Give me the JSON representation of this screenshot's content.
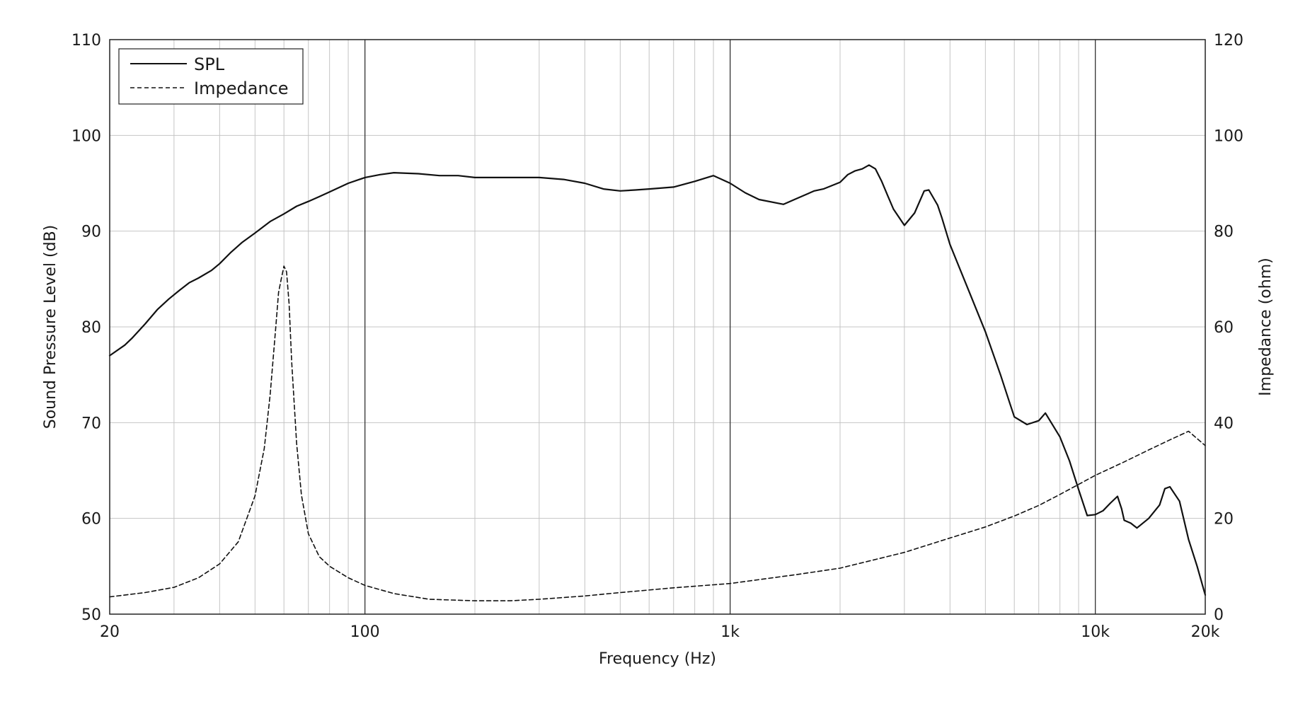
{
  "chart_data": {
    "type": "line",
    "xlabel": "Frequency (Hz)",
    "ylabel": "Sound Pressure Level (dB)",
    "y2label": "Impedance (ohm)",
    "xscale": "log",
    "xlim": [
      20,
      20000
    ],
    "ylim": [
      50,
      110
    ],
    "y2lim": [
      0,
      120
    ],
    "grid": true,
    "legend_position": "top-left",
    "x_ticks": [
      {
        "value": 20,
        "label": "20"
      },
      {
        "value": 100,
        "label": "100"
      },
      {
        "value": 1000,
        "label": "1k"
      },
      {
        "value": 10000,
        "label": "10k"
      },
      {
        "value": 20000,
        "label": "20k"
      }
    ],
    "y_ticks": [
      {
        "value": 50,
        "label": "50"
      },
      {
        "value": 60,
        "label": "60"
      },
      {
        "value": 70,
        "label": "70"
      },
      {
        "value": 80,
        "label": "80"
      },
      {
        "value": 90,
        "label": "90"
      },
      {
        "value": 100,
        "label": "100"
      },
      {
        "value": 110,
        "label": "110"
      }
    ],
    "y2_ticks": [
      {
        "value": 0,
        "label": "0"
      },
      {
        "value": 20,
        "label": "20"
      },
      {
        "value": 40,
        "label": "40"
      },
      {
        "value": 60,
        "label": "60"
      },
      {
        "value": 80,
        "label": "80"
      },
      {
        "value": 100,
        "label": "100"
      },
      {
        "value": 120,
        "label": "120"
      }
    ],
    "series": [
      {
        "name": "SPL",
        "axis": "left",
        "style": "solid",
        "color": "#111111",
        "x": [
          20,
          22,
          23,
          25,
          27,
          29,
          31,
          33,
          35,
          38,
          40,
          43,
          46,
          50,
          55,
          60,
          65,
          70,
          75,
          80,
          90,
          100,
          110,
          120,
          140,
          160,
          180,
          200,
          250,
          300,
          350,
          400,
          450,
          500,
          550,
          600,
          700,
          800,
          900,
          1000,
          1100,
          1200,
          1400,
          1500,
          1700,
          1800,
          2000,
          2100,
          2200,
          2300,
          2400,
          2500,
          2600,
          2700,
          2800,
          3000,
          3200,
          3400,
          3500,
          3700,
          3800,
          4000,
          4500,
          5000,
          5500,
          5800,
          6000,
          6500,
          7000,
          7300,
          8000,
          8500,
          9000,
          9500,
          10000,
          10500,
          11000,
          11500,
          11800,
          12000,
          12500,
          13000,
          14000,
          15000,
          15500,
          16000,
          17000,
          18000,
          19000,
          20000
        ],
        "y": [
          77.0,
          78.1,
          78.8,
          80.3,
          81.8,
          82.9,
          83.8,
          84.6,
          85.1,
          85.9,
          86.6,
          87.8,
          88.8,
          89.8,
          91.0,
          91.8,
          92.6,
          93.1,
          93.6,
          94.1,
          95.0,
          95.6,
          95.9,
          96.1,
          96.0,
          95.8,
          95.8,
          95.6,
          95.6,
          95.6,
          95.4,
          95.0,
          94.4,
          94.2,
          94.3,
          94.4,
          94.6,
          95.2,
          95.8,
          95.0,
          94.0,
          93.3,
          92.8,
          93.3,
          94.2,
          94.4,
          95.1,
          95.9,
          96.3,
          96.5,
          96.9,
          96.5,
          95.2,
          93.7,
          92.3,
          90.6,
          91.9,
          94.2,
          94.3,
          92.7,
          91.4,
          88.6,
          83.8,
          79.5,
          75.0,
          72.3,
          70.6,
          69.8,
          70.2,
          71.0,
          68.5,
          66.0,
          63.0,
          60.3,
          60.4,
          60.8,
          61.6,
          62.3,
          61.0,
          59.8,
          59.5,
          59.0,
          60.0,
          61.4,
          63.1,
          63.3,
          61.8,
          57.8,
          55.0,
          52.0
        ]
      },
      {
        "name": "Impedance",
        "axis": "right",
        "style": "dashed",
        "color": "#111111",
        "x": [
          20,
          25,
          30,
          35,
          40,
          45,
          50,
          53,
          55,
          57,
          58,
          59,
          60,
          61,
          62,
          63,
          65,
          67,
          70,
          75,
          80,
          90,
          100,
          120,
          150,
          200,
          250,
          300,
          400,
          500,
          700,
          1000,
          1500,
          2000,
          3000,
          4000,
          5000,
          6000,
          7000,
          8000,
          9000,
          10000,
          12000,
          14000,
          16000,
          18000,
          20000
        ],
        "y": [
          3.6,
          4.5,
          5.6,
          7.6,
          10.5,
          15.1,
          24.7,
          34.6,
          45.8,
          60.0,
          67.2,
          70.0,
          72.7,
          71.5,
          64.8,
          52.8,
          35.7,
          24.9,
          16.8,
          12.0,
          10.0,
          7.6,
          6.0,
          4.3,
          3.1,
          2.8,
          2.8,
          3.1,
          3.8,
          4.5,
          5.5,
          6.4,
          8.2,
          9.6,
          12.9,
          15.9,
          18.2,
          20.5,
          22.7,
          25.0,
          27.1,
          29.0,
          31.8,
          34.3,
          36.4,
          38.2,
          35.2
        ]
      }
    ]
  }
}
